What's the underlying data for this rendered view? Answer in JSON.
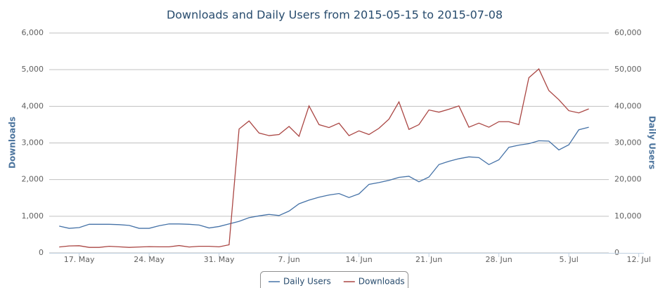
{
  "chart_data": {
    "type": "line",
    "title": "Downloads and Daily Users from 2015-05-15 to 2015-07-08",
    "y_label": "Downloads",
    "y2_label": "Daily Users",
    "x": [
      "2015-05-15",
      "2015-05-16",
      "2015-05-17",
      "2015-05-18",
      "2015-05-19",
      "2015-05-20",
      "2015-05-21",
      "2015-05-22",
      "2015-05-23",
      "2015-05-24",
      "2015-05-25",
      "2015-05-26",
      "2015-05-27",
      "2015-05-28",
      "2015-05-29",
      "2015-05-30",
      "2015-05-31",
      "2015-06-01",
      "2015-06-02",
      "2015-06-03",
      "2015-06-04",
      "2015-06-05",
      "2015-06-06",
      "2015-06-07",
      "2015-06-08",
      "2015-06-09",
      "2015-06-10",
      "2015-06-11",
      "2015-06-12",
      "2015-06-13",
      "2015-06-14",
      "2015-06-15",
      "2015-06-16",
      "2015-06-17",
      "2015-06-18",
      "2015-06-19",
      "2015-06-20",
      "2015-06-21",
      "2015-06-22",
      "2015-06-23",
      "2015-06-24",
      "2015-06-25",
      "2015-06-26",
      "2015-06-27",
      "2015-06-28",
      "2015-06-29",
      "2015-06-30",
      "2015-07-01",
      "2015-07-02",
      "2015-07-03",
      "2015-07-04",
      "2015-07-05",
      "2015-07-06",
      "2015-07-07"
    ],
    "series": [
      {
        "name": "Daily Users",
        "color": "#4572a7",
        "axis": "y2",
        "values": [
          7300,
          6700,
          6900,
          7800,
          7800,
          7800,
          7700,
          7500,
          6700,
          6700,
          7400,
          7900,
          7900,
          7800,
          7600,
          6800,
          7200,
          7900,
          8600,
          9600,
          10100,
          10500,
          10200,
          11400,
          13400,
          14400,
          15200,
          15800,
          16200,
          15100,
          16100,
          18700,
          19200,
          19800,
          20600,
          20900,
          19400,
          20700,
          24100,
          25000,
          25700,
          26200,
          26000,
          24100,
          25400,
          28800,
          29400,
          29800,
          30600,
          30500,
          28100,
          29500,
          33600,
          34300
        ]
      },
      {
        "name": "Downloads",
        "color": "#aa4643",
        "values": [
          160,
          190,
          195,
          150,
          150,
          180,
          165,
          150,
          160,
          170,
          165,
          165,
          200,
          160,
          180,
          180,
          165,
          220,
          3380,
          3600,
          3270,
          3200,
          3230,
          3450,
          3180,
          4010,
          3500,
          3420,
          3540,
          3200,
          3330,
          3230,
          3400,
          3650,
          4120,
          3370,
          3500,
          3900,
          3840,
          3920,
          4010,
          3430,
          3540,
          3430,
          3580,
          3580,
          3500,
          4780,
          5020,
          4430,
          4180,
          3880,
          3820,
          3930
        ]
      }
    ],
    "xlim": [
      "2015-05-14",
      "2015-07-09"
    ],
    "xticks": [
      {
        "value": "2015-05-17",
        "label": "17. May"
      },
      {
        "value": "2015-05-24",
        "label": "24. May"
      },
      {
        "value": "2015-05-31",
        "label": "31. May"
      },
      {
        "value": "2015-06-07",
        "label": "7. Jun"
      },
      {
        "value": "2015-06-14",
        "label": "14. Jun"
      },
      {
        "value": "2015-06-21",
        "label": "21. Jun"
      },
      {
        "value": "2015-06-28",
        "label": "28. Jun"
      },
      {
        "value": "2015-07-05",
        "label": "5. Jul"
      },
      {
        "value": "2015-07-12",
        "label": "12. Jul"
      }
    ],
    "ylim": [
      0,
      6000
    ],
    "yticks": [
      0,
      {
        "value": 1000,
        "label": "1,000"
      },
      {
        "value": 2000,
        "label": "2,000"
      },
      {
        "value": 3000,
        "label": "3,000"
      },
      {
        "value": 4000,
        "label": "4,000"
      },
      {
        "value": 5000,
        "label": "5,000"
      },
      {
        "value": 6000,
        "label": "6,000"
      }
    ],
    "y2lim": [
      0,
      60000
    ],
    "y2ticks": [
      0,
      {
        "value": 10000,
        "label": "10,000"
      },
      {
        "value": 20000,
        "label": "20,000"
      },
      {
        "value": 30000,
        "label": "30,000"
      },
      {
        "value": 40000,
        "label": "40,000"
      },
      {
        "value": 50000,
        "label": "50,000"
      },
      {
        "value": 60000,
        "label": "60,000"
      }
    ],
    "grid": true,
    "legend": "bottom"
  }
}
